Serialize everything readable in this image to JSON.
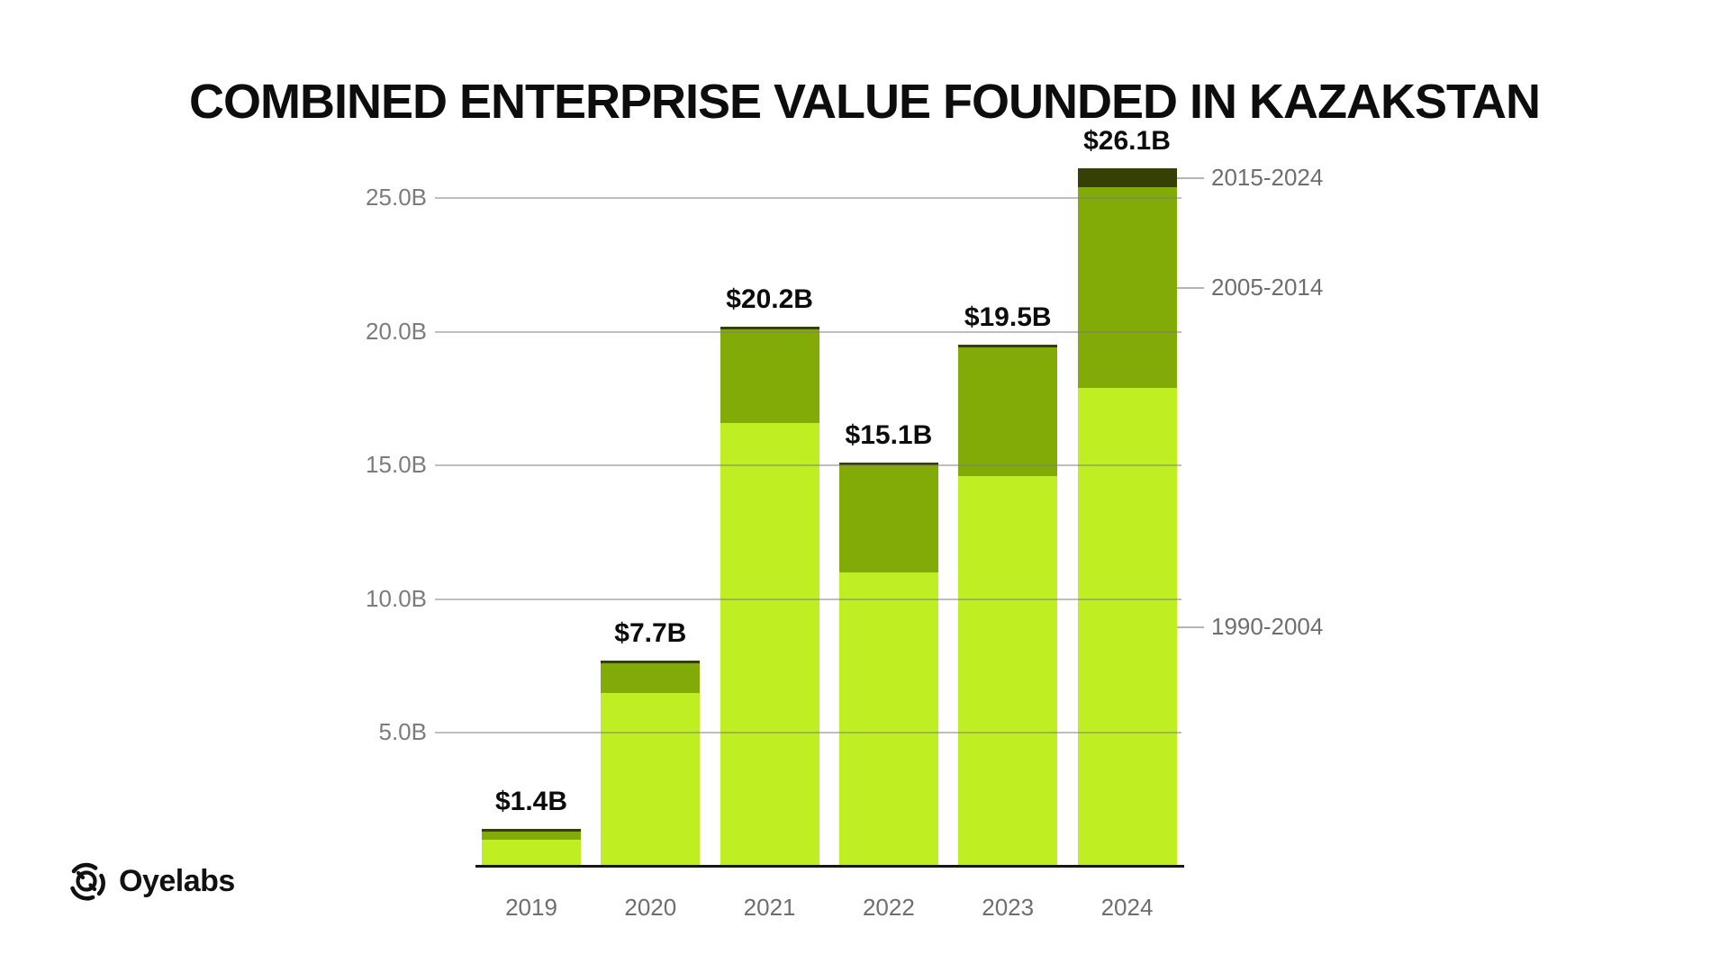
{
  "title": "COMBINED ENTERPRISE VALUE FOUNDED IN KAZAKSTAN",
  "logo": {
    "text": "Oyelabs",
    "icon": "oyelabs-swirl-icon"
  },
  "colors": {
    "series_1990_2004": "#bfee22",
    "series_2005_2014": "#82ab08",
    "series_2015_2024": "#364004",
    "gridline": "#7d7d7d",
    "axis_text": "#6e6e6e",
    "label_text": "#0c0c0c"
  },
  "chart_data": {
    "type": "bar",
    "stacked": true,
    "title": "COMBINED ENTERPRISE VALUE FOUNDED IN KAZAKSTAN",
    "xlabel": "",
    "ylabel": "",
    "categories": [
      "2019",
      "2020",
      "2021",
      "2022",
      "2023",
      "2024"
    ],
    "series": [
      {
        "name": "1990-2004",
        "color": "#bfee22",
        "values": [
          1.0,
          6.5,
          16.6,
          11.0,
          14.6,
          17.9
        ]
      },
      {
        "name": "2005-2014",
        "color": "#82ab08",
        "values": [
          0.3,
          1.1,
          3.5,
          4.0,
          4.8,
          7.5
        ]
      },
      {
        "name": "2015-2024",
        "color": "#364004",
        "values": [
          0.1,
          0.1,
          0.1,
          0.1,
          0.1,
          0.7
        ]
      }
    ],
    "totals": [
      1.4,
      7.7,
      20.2,
      15.1,
      19.5,
      26.1
    ],
    "total_labels": [
      "$1.4B",
      "$7.7B",
      "$20.2B",
      "$15.1B",
      "$19.5B",
      "$26.1B"
    ],
    "y_ticks": [
      {
        "value": 25,
        "label": "25.0B"
      },
      {
        "value": 20,
        "label": "20.0B"
      },
      {
        "value": 15,
        "label": "15.0B"
      },
      {
        "value": 10,
        "label": "10.0B"
      },
      {
        "value": 5,
        "label": "5.0B"
      }
    ],
    "ylim": [
      0,
      26.2
    ],
    "grid": true,
    "legend_position": "right",
    "legend_entries": [
      "2015-2024",
      "2005-2014",
      "1990-2004"
    ]
  }
}
